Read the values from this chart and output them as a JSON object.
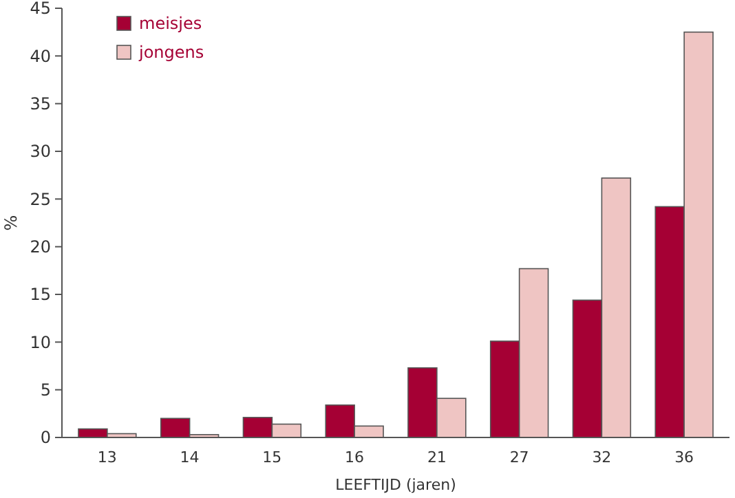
{
  "chart_data": {
    "type": "bar",
    "xlabel": "LEEFTIJD (jaren)",
    "ylabel": "%",
    "categories": [
      "13",
      "14",
      "15",
      "16",
      "21",
      "27",
      "32",
      "36"
    ],
    "series": [
      {
        "name": "meisjes",
        "color": "#a50034",
        "values": [
          0.9,
          2.0,
          2.1,
          3.4,
          7.3,
          10.1,
          14.4,
          24.2
        ]
      },
      {
        "name": "jongens",
        "color": "#efc5c3",
        "values": [
          0.4,
          0.3,
          1.4,
          1.2,
          4.1,
          17.7,
          27.2,
          42.5
        ]
      }
    ],
    "ylim": [
      0,
      45
    ],
    "yticks": [
      0,
      5,
      10,
      15,
      20,
      25,
      30,
      35,
      40,
      45
    ],
    "grid": false,
    "legend": "top left"
  }
}
